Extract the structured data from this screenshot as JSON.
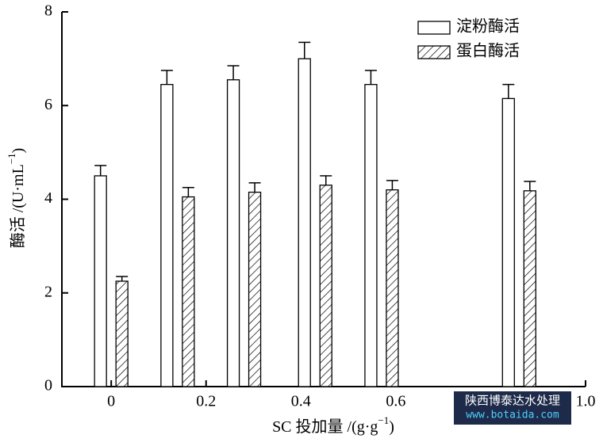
{
  "chart_data": {
    "type": "bar",
    "x_label": "SC 投加量 /(g·g",
    "x_label_sup": "−1",
    "x_label_end": ")",
    "y_label": "酶活 /(U·mL",
    "y_label_sup": "−1",
    "y_label_end": ")",
    "x": [
      0,
      0.14,
      0.28,
      0.43,
      0.57,
      0.86
    ],
    "xlim": [
      -0.104,
      1.0
    ],
    "xticks": [
      0,
      0.2,
      0.4,
      0.6,
      {
        "value": 1.0,
        "label": "1.0"
      }
    ],
    "ylim": [
      0,
      8
    ],
    "yticks": [
      0,
      2,
      4,
      6,
      8
    ],
    "legend": "upper right",
    "series": [
      {
        "name": "淀粉酶活",
        "color": "#ffffff",
        "hatch": false,
        "values": [
          4.5,
          6.45,
          6.55,
          7.0,
          6.45,
          6.15
        ],
        "errors": [
          0.22,
          0.3,
          0.3,
          0.35,
          0.3,
          0.3
        ]
      },
      {
        "name": "蛋白酶活",
        "color": "#ffffff",
        "hatch": true,
        "values": [
          2.25,
          4.05,
          4.15,
          4.3,
          4.2,
          4.18
        ],
        "errors": [
          0.1,
          0.2,
          0.2,
          0.2,
          0.2,
          0.2
        ]
      }
    ]
  },
  "watermark": {
    "line1": "陕西博泰达水处理",
    "line2": "www.botaida.com"
  }
}
